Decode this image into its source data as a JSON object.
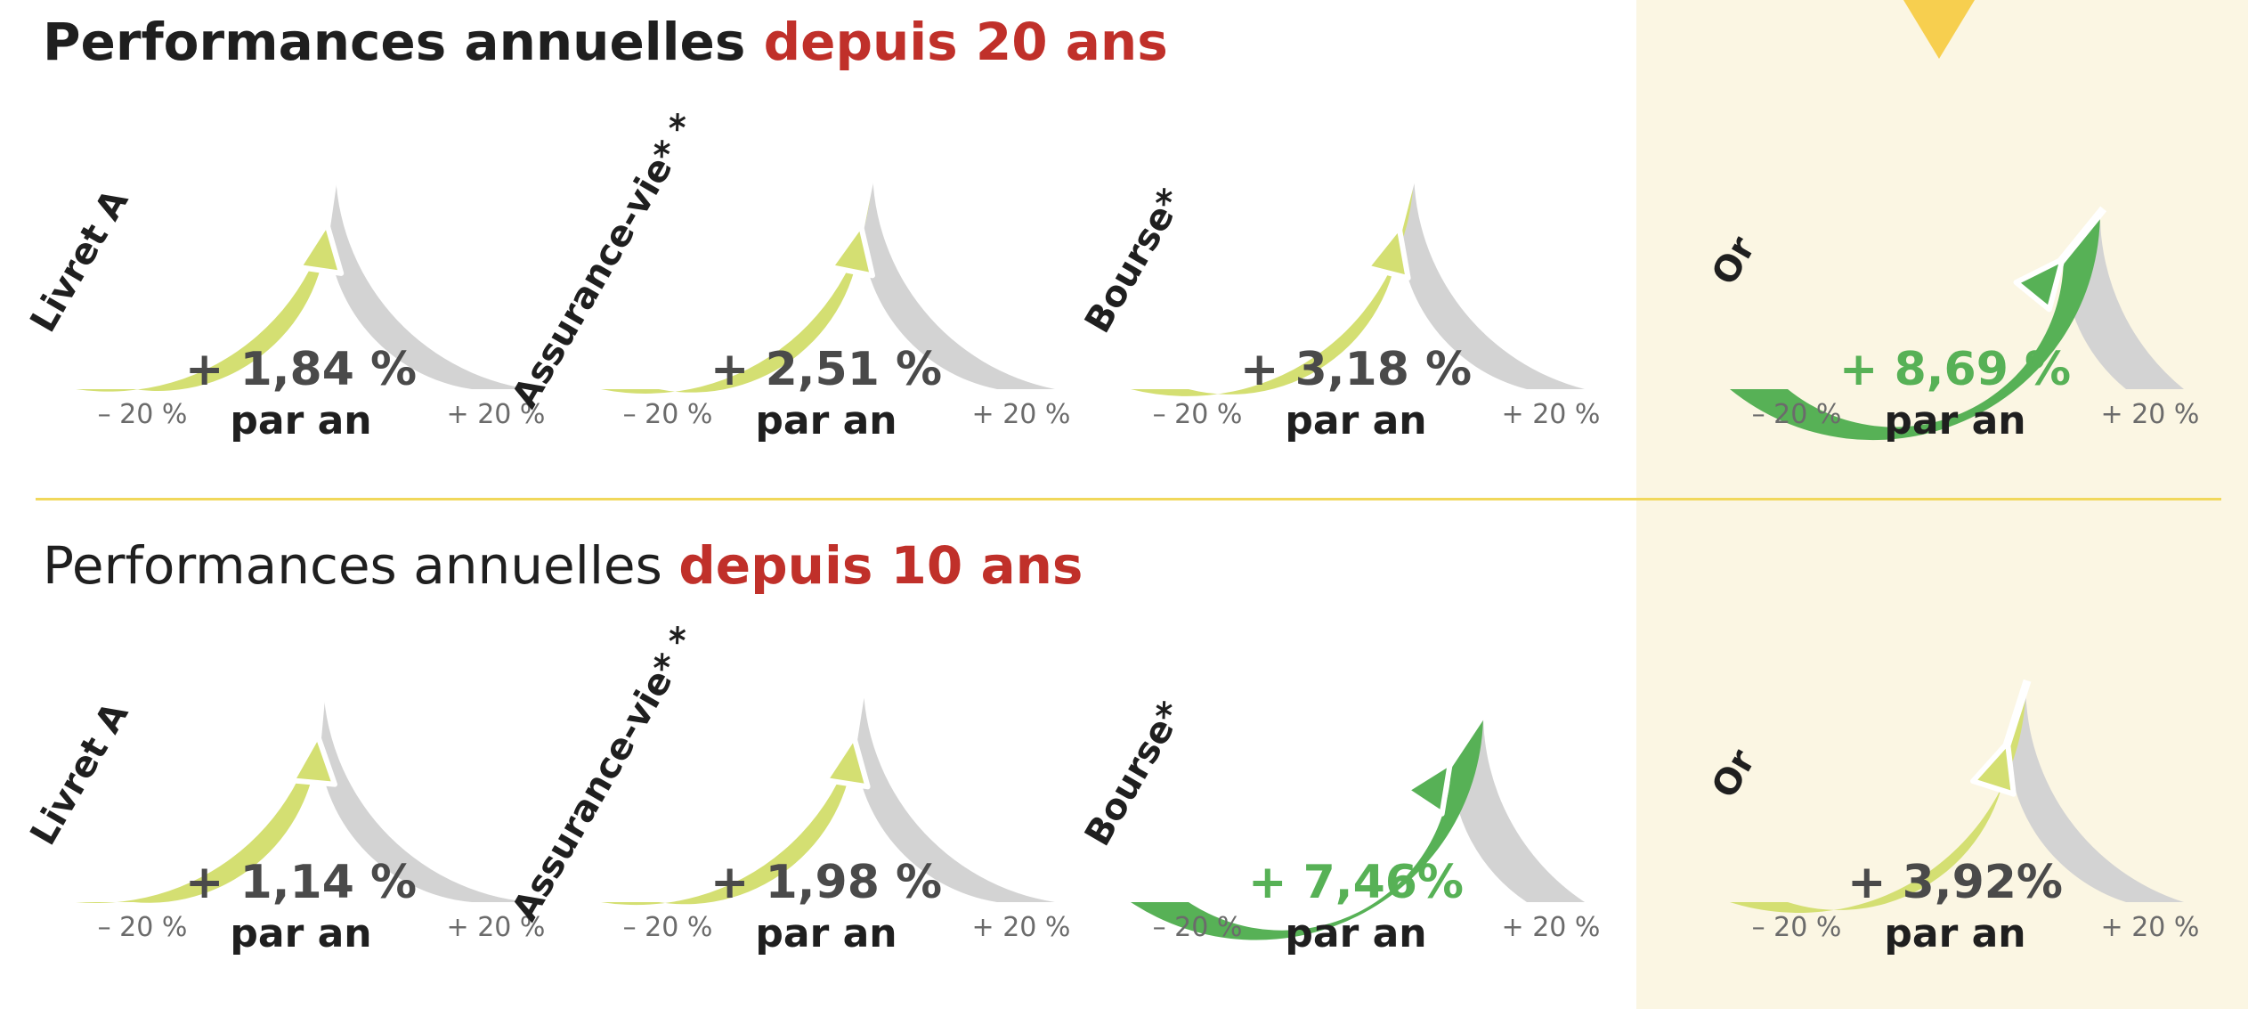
{
  "colors": {
    "accent": "#c0302a",
    "gauge_light": "#d4df72",
    "gauge_strong": "#57b156",
    "gauge_track": "#d3d3d3",
    "value_default": "#4a4a4a",
    "value_strong": "#57b156",
    "highlight_bg": "#fbf6e3",
    "divider": "#f1d85c",
    "marker": "#f7cf4f"
  },
  "sections": [
    {
      "title_prefix": "Performances annuelles ",
      "title_accent": "depuis 20 ans"
    },
    {
      "title_prefix": "Performances annuelles ",
      "title_accent": "depuis 10 ans"
    }
  ],
  "chart_data": [
    {
      "type": "gauge",
      "title": "Performances annuelles depuis 20 ans",
      "range": [
        -20,
        20
      ],
      "range_labels": [
        "– 20 %",
        "+ 20 %"
      ],
      "unit_label": "par an",
      "gauges": [
        {
          "name": "Livret A",
          "value": 1.84,
          "value_label": "+ 1,84 %",
          "style": "light"
        },
        {
          "name": "Assurance-vie* *",
          "value": 2.51,
          "value_label": "+ 2,51 %",
          "style": "light"
        },
        {
          "name": "Bourse*",
          "value": 3.18,
          "value_label": "+ 3,18 %",
          "style": "light"
        },
        {
          "name": "Or",
          "value": 8.69,
          "value_label": "+ 8,69 %",
          "style": "strong"
        }
      ]
    },
    {
      "type": "gauge",
      "title": "Performances annuelles depuis 10 ans",
      "range": [
        -20,
        20
      ],
      "range_labels": [
        "– 20 %",
        "+ 20 %"
      ],
      "unit_label": "par an",
      "gauges": [
        {
          "name": "Livret A",
          "value": 1.14,
          "value_label": "+ 1,14 %",
          "style": "light"
        },
        {
          "name": "Assurance-vie* *",
          "value": 1.98,
          "value_label": "+ 1,98 %",
          "style": "light"
        },
        {
          "name": "Bourse*",
          "value": 7.46,
          "value_label": "+ 7,46%",
          "style": "strong"
        },
        {
          "name": "Or",
          "value": 3.92,
          "value_label": "+ 3,92%",
          "style": "light"
        }
      ]
    }
  ]
}
